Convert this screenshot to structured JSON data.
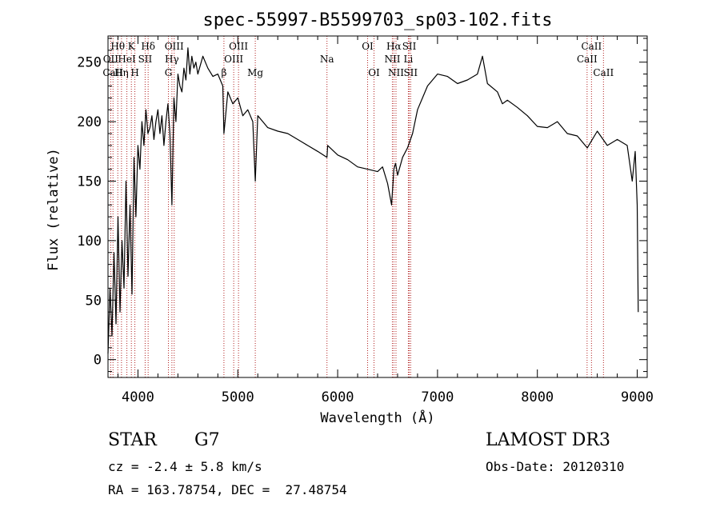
{
  "chart_data": {
    "type": "line",
    "title": "spec-55997-B5599703_sp03-102.fits",
    "xlabel": "Wavelength (Å)",
    "ylabel": "Flux (relative)",
    "xlim": [
      3700,
      9100
    ],
    "ylim": [
      -15,
      272
    ],
    "xticks": [
      4000,
      5000,
      6000,
      7000,
      8000,
      9000
    ],
    "yticks": [
      0,
      50,
      100,
      150,
      200,
      250
    ],
    "series": [
      {
        "x": [
          3700,
          3720,
          3740,
          3760,
          3780,
          3800,
          3820,
          3840,
          3860,
          3880,
          3900,
          3920,
          3940,
          3960,
          3980,
          4000,
          4020,
          4040,
          4060,
          4080,
          4100,
          4120,
          4140,
          4160,
          4180,
          4200,
          4220,
          4240,
          4260,
          4280,
          4300,
          4320,
          4340,
          4360,
          4380,
          4400,
          4420,
          4440,
          4460,
          4480,
          4500,
          4520,
          4540,
          4560,
          4580,
          4600,
          4650,
          4700,
          4750,
          4800,
          4850,
          4861,
          4900,
          4950,
          5000,
          5050,
          5100,
          5150,
          5175,
          5200,
          5250,
          5300,
          5400,
          5500,
          5600,
          5700,
          5800,
          5893,
          5900,
          6000,
          6100,
          6200,
          6300,
          6400,
          6450,
          6500,
          6540,
          6563,
          6580,
          6600,
          6650,
          6700,
          6750,
          6800,
          6900,
          7000,
          7100,
          7200,
          7300,
          7400,
          7450,
          7500,
          7600,
          7650,
          7700,
          7800,
          7900,
          8000,
          8100,
          8200,
          8300,
          8400,
          8500,
          8600,
          8700,
          8800,
          8900,
          8950,
          8980,
          9000,
          9010
        ],
        "y": [
          5,
          60,
          20,
          90,
          30,
          120,
          40,
          100,
          60,
          150,
          70,
          130,
          55,
          170,
          120,
          180,
          160,
          200,
          180,
          210,
          190,
          195,
          205,
          185,
          200,
          210,
          190,
          205,
          180,
          200,
          215,
          190,
          130,
          220,
          200,
          240,
          230,
          225,
          245,
          235,
          262,
          240,
          255,
          245,
          250,
          240,
          255,
          245,
          238,
          240,
          230,
          190,
          225,
          215,
          220,
          205,
          210,
          200,
          150,
          205,
          200,
          195,
          192,
          190,
          185,
          180,
          175,
          170,
          180,
          172,
          168,
          162,
          160,
          158,
          162,
          148,
          130,
          160,
          165,
          155,
          170,
          178,
          190,
          210,
          230,
          240,
          238,
          232,
          235,
          240,
          255,
          232,
          225,
          215,
          218,
          212,
          205,
          196,
          195,
          200,
          190,
          188,
          178,
          192,
          180,
          185,
          180,
          150,
          175,
          130,
          40
        ]
      }
    ],
    "line_markers": [
      {
        "name": "Hθ",
        "x": 3798,
        "row": 1
      },
      {
        "name": "OII",
        "x": 3727,
        "row": 2
      },
      {
        "name": "CaII",
        "x": 3750,
        "row": 3
      },
      {
        "name": "Hη",
        "x": 3835,
        "row": 3
      },
      {
        "name": "HeI",
        "x": 3889,
        "row": 2
      },
      {
        "name": "K",
        "x": 3934,
        "row": 1
      },
      {
        "name": "H",
        "x": 3969,
        "row": 3
      },
      {
        "name": "SII",
        "x": 4072,
        "row": 2
      },
      {
        "name": "Hδ",
        "x": 4102,
        "row": 1
      },
      {
        "name": "OIII",
        "x": 4363,
        "row": 1
      },
      {
        "name": "Hγ",
        "x": 4340,
        "row": 2
      },
      {
        "name": "G",
        "x": 4305,
        "row": 3
      },
      {
        "name": "OIII",
        "x": 5007,
        "row": 1
      },
      {
        "name": "OIII",
        "x": 4959,
        "row": 2
      },
      {
        "name": "β",
        "x": 4861,
        "row": 3
      },
      {
        "name": "Mg",
        "x": 5175,
        "row": 3
      },
      {
        "name": "Na",
        "x": 5893,
        "row": 2
      },
      {
        "name": "OI",
        "x": 6300,
        "row": 1
      },
      {
        "name": "OI",
        "x": 6364,
        "row": 3
      },
      {
        "name": "Hα",
        "x": 6563,
        "row": 1
      },
      {
        "name": "SII",
        "x": 6717,
        "row": 1
      },
      {
        "name": "NII",
        "x": 6548,
        "row": 2
      },
      {
        "name": "Li",
        "x": 6708,
        "row": 2
      },
      {
        "name": "NII",
        "x": 6584,
        "row": 3
      },
      {
        "name": "SII",
        "x": 6731,
        "row": 3
      },
      {
        "name": "CaII",
        "x": 8542,
        "row": 1
      },
      {
        "name": "CaII",
        "x": 8498,
        "row": 2
      },
      {
        "name": "CaII",
        "x": 8662,
        "row": 3
      }
    ]
  },
  "info": {
    "object_class": "STAR",
    "subclass": "G7",
    "redshift": "cz = -2.4 ± 5.8 km/s",
    "coords": "RA = 163.78754, DEC =  27.48754",
    "survey": "LAMOST DR3",
    "obs_date": "Obs-Date: 20120310"
  },
  "colors": {
    "axis": "#000000",
    "spectrum": "#000000",
    "line_marker": "#b22222"
  }
}
